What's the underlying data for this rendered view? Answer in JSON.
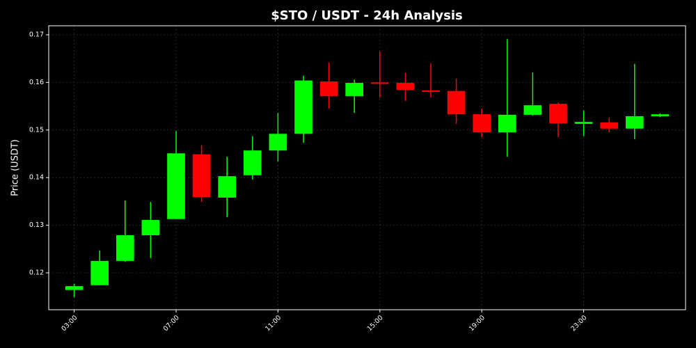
{
  "chart_data": {
    "type": "candlestick",
    "title": "$STO / USDT - 24h Analysis",
    "y_label": "Price (USDT)",
    "x": [
      3,
      4,
      5,
      6,
      7,
      8,
      9,
      10,
      11,
      12,
      13,
      14,
      15,
      16,
      17,
      18,
      19,
      20,
      21,
      22,
      23,
      24,
      25,
      26
    ],
    "open": [
      0.1164,
      0.1174,
      0.1225,
      0.1279,
      0.1313,
      0.1449,
      0.1358,
      0.1405,
      0.1457,
      0.1492,
      0.1602,
      0.1571,
      0.16,
      0.1599,
      0.1583,
      0.1582,
      0.1533,
      0.1495,
      0.1532,
      0.1555,
      0.1513,
      0.1516,
      0.1503,
      0.1529
    ],
    "high": [
      0.1177,
      0.1247,
      0.1352,
      0.1349,
      0.1498,
      0.1468,
      0.1444,
      0.1487,
      0.1536,
      0.1614,
      0.1642,
      0.1606,
      0.1665,
      0.162,
      0.164,
      0.1608,
      0.1545,
      0.1691,
      0.1621,
      0.1558,
      0.1541,
      0.1526,
      0.1639,
      0.1535
    ],
    "low": [
      0.1149,
      0.1174,
      0.1223,
      0.1231,
      0.1313,
      0.1349,
      0.1317,
      0.1396,
      0.1434,
      0.1473,
      0.1545,
      0.1536,
      0.1568,
      0.1561,
      0.1568,
      0.1513,
      0.1485,
      0.1444,
      0.153,
      0.1485,
      0.1487,
      0.1495,
      0.1481,
      0.1527
    ],
    "close": [
      0.1172,
      0.1225,
      0.1279,
      0.1311,
      0.1451,
      0.1359,
      0.1403,
      0.1457,
      0.1492,
      0.1604,
      0.1571,
      0.1599,
      0.1597,
      0.1584,
      0.158,
      0.1533,
      0.1495,
      0.1532,
      0.1552,
      0.1514,
      0.1517,
      0.1503,
      0.1529,
      0.1533
    ],
    "up_color": "#00ff00",
    "down_color": "#ff0000",
    "xlim": [
      2.0,
      27.0
    ],
    "xticks": [
      {
        "value": 3,
        "label": "03:00"
      },
      {
        "value": 7,
        "label": "07:00"
      },
      {
        "value": 11,
        "label": "11:00"
      },
      {
        "value": 15,
        "label": "15:00"
      },
      {
        "value": 19,
        "label": "19:00"
      },
      {
        "value": 23,
        "label": "23:00"
      }
    ],
    "ylim": [
      0.11225,
      0.1719
    ],
    "yticks": [
      0.12,
      0.13,
      0.14,
      0.15,
      0.16,
      0.17
    ],
    "grid": true
  }
}
